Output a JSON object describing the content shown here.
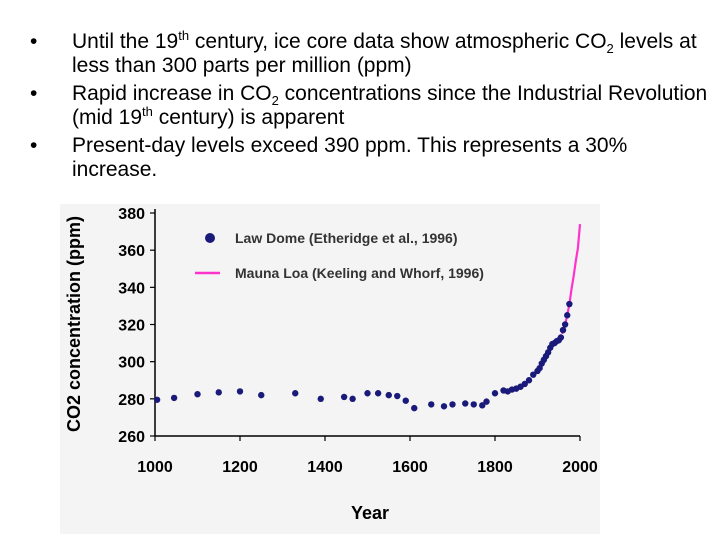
{
  "bullets": [
    {
      "parts": [
        {
          "t": "Until the 19"
        },
        {
          "t": "th",
          "s": "sup"
        },
        {
          "t": " century, ice core data show atmospheric CO"
        },
        {
          "t": "2",
          "s": "sub"
        },
        {
          "t": " levels at less than 300 parts per million (ppm)"
        }
      ]
    },
    {
      "parts": [
        {
          "t": "Rapid increase in CO"
        },
        {
          "t": "2",
          "s": "sub"
        },
        {
          "t": " concentrations since the Industrial Revolution (mid 19"
        },
        {
          "t": "th",
          "s": "sup"
        },
        {
          "t": " century) is apparent"
        }
      ]
    },
    {
      "parts": [
        {
          "t": "Present-day levels exceed 390 ppm.  This represents a 30% increase."
        }
      ]
    }
  ],
  "bullet_glyph": "•",
  "chart_data": {
    "type": "scatter",
    "xlabel": "Year",
    "ylabel": "CO2 concentration (ppm)",
    "xlim": [
      1000,
      2000
    ],
    "ylim": [
      260,
      380
    ],
    "xticks": [
      1000,
      1200,
      1400,
      1600,
      1800,
      2000
    ],
    "yticks": [
      260,
      280,
      300,
      320,
      340,
      360,
      380
    ],
    "legend_position": "top-left",
    "series": [
      {
        "name": "Law Dome (Etheridge et al., 1996)",
        "marker": "circle",
        "color": "#1a1a7a",
        "x": [
          1005,
          1045,
          1100,
          1150,
          1200,
          1250,
          1330,
          1390,
          1445,
          1465,
          1500,
          1525,
          1550,
          1570,
          1590,
          1610,
          1650,
          1680,
          1700,
          1730,
          1750,
          1770,
          1780,
          1800,
          1820,
          1830,
          1840,
          1850,
          1860,
          1870,
          1880,
          1890,
          1900,
          1905,
          1910,
          1915,
          1920,
          1925,
          1930,
          1935,
          1940,
          1945,
          1950,
          1955,
          1960,
          1965,
          1970,
          1975
        ],
        "y": [
          279.5,
          280.5,
          282.5,
          283.5,
          284,
          282,
          283,
          280,
          281,
          280,
          283,
          283,
          282,
          281.5,
          279,
          275,
          277,
          276,
          277,
          277.5,
          277,
          276.5,
          278.5,
          283,
          284.5,
          284,
          285,
          285.5,
          286.5,
          288,
          290,
          293,
          295,
          296.5,
          299,
          301,
          303,
          305,
          307.5,
          309.5,
          310,
          311,
          311.5,
          313,
          317,
          320,
          325,
          331
        ]
      },
      {
        "name": "Mauna Loa (Keeling and Whorf, 1996)",
        "marker": "line",
        "color": "#ff33cc",
        "x": [
          1958,
          1965,
          1970,
          1975,
          1980,
          1985,
          1990,
          1995,
          2000
        ],
        "y": [
          315,
          320,
          325,
          331,
          339,
          346,
          354,
          361,
          374
        ]
      }
    ]
  }
}
